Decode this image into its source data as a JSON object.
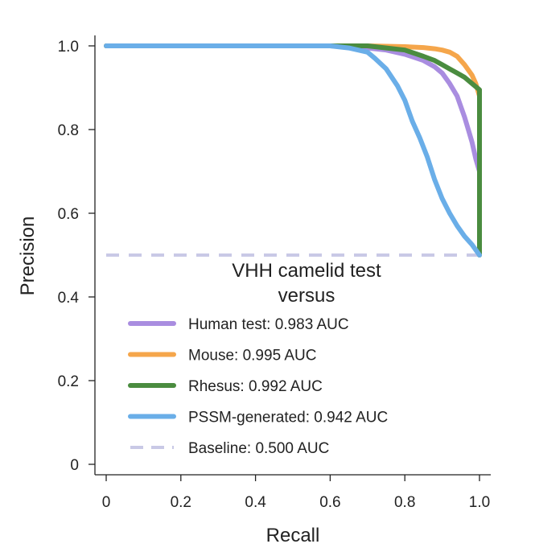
{
  "chart_data": {
    "type": "line",
    "title": "",
    "xlabel": "Recall",
    "ylabel": "Precision",
    "xlim": [
      0,
      1.0
    ],
    "ylim": [
      0,
      1.0
    ],
    "x_ticks": [
      "0",
      "0.2",
      "0.4",
      "0.6",
      "0.8",
      "1.0"
    ],
    "y_ticks": [
      "0",
      "0.2",
      "0.4",
      "0.6",
      "0.8",
      "1.0"
    ],
    "grid": false,
    "legend_title": "VHH camelid test versus",
    "legend_position": "center",
    "series": [
      {
        "name": "Human test: 0.983 AUC",
        "color": "#a98de0",
        "style": "solid",
        "points": [
          [
            0,
            1.0
          ],
          [
            0.6,
            1.0
          ],
          [
            0.7,
            0.995
          ],
          [
            0.75,
            0.99
          ],
          [
            0.8,
            0.98
          ],
          [
            0.85,
            0.965
          ],
          [
            0.88,
            0.95
          ],
          [
            0.9,
            0.935
          ],
          [
            0.92,
            0.91
          ],
          [
            0.94,
            0.88
          ],
          [
            0.96,
            0.83
          ],
          [
            0.97,
            0.8
          ],
          [
            0.98,
            0.77
          ],
          [
            0.99,
            0.73
          ],
          [
            1.0,
            0.7
          ],
          [
            1.0,
            0.5
          ]
        ]
      },
      {
        "name": "Mouse: 0.995 AUC",
        "color": "#f5a64b",
        "style": "solid",
        "points": [
          [
            0,
            1.0
          ],
          [
            0.7,
            1.0
          ],
          [
            0.8,
            0.998
          ],
          [
            0.85,
            0.996
          ],
          [
            0.88,
            0.993
          ],
          [
            0.9,
            0.99
          ],
          [
            0.92,
            0.985
          ],
          [
            0.94,
            0.975
          ],
          [
            0.96,
            0.955
          ],
          [
            0.98,
            0.93
          ],
          [
            0.99,
            0.91
          ],
          [
            1.0,
            0.88
          ],
          [
            1.0,
            0.5
          ]
        ]
      },
      {
        "name": "Rhesus: 0.992 AUC",
        "color": "#4a8c3f",
        "style": "solid",
        "points": [
          [
            0,
            1.0
          ],
          [
            0.7,
            1.0
          ],
          [
            0.75,
            0.995
          ],
          [
            0.8,
            0.99
          ],
          [
            0.85,
            0.975
          ],
          [
            0.88,
            0.965
          ],
          [
            0.9,
            0.955
          ],
          [
            0.92,
            0.945
          ],
          [
            0.94,
            0.935
          ],
          [
            0.96,
            0.925
          ],
          [
            0.98,
            0.91
          ],
          [
            1.0,
            0.895
          ],
          [
            1.0,
            0.5
          ]
        ]
      },
      {
        "name": "PSSM-generated: 0.942 AUC",
        "color": "#6aaee8",
        "style": "solid",
        "points": [
          [
            0,
            1.0
          ],
          [
            0.6,
            1.0
          ],
          [
            0.65,
            0.995
          ],
          [
            0.7,
            0.985
          ],
          [
            0.72,
            0.97
          ],
          [
            0.75,
            0.945
          ],
          [
            0.78,
            0.905
          ],
          [
            0.8,
            0.87
          ],
          [
            0.82,
            0.82
          ],
          [
            0.84,
            0.78
          ],
          [
            0.86,
            0.735
          ],
          [
            0.88,
            0.68
          ],
          [
            0.9,
            0.635
          ],
          [
            0.92,
            0.6
          ],
          [
            0.94,
            0.57
          ],
          [
            0.96,
            0.545
          ],
          [
            0.98,
            0.525
          ],
          [
            1.0,
            0.5
          ]
        ]
      },
      {
        "name": "Baseline: 0.500 AUC",
        "color": "#c9c9e6",
        "style": "dashed",
        "points": [
          [
            0,
            0.5
          ],
          [
            1.0,
            0.5
          ]
        ]
      }
    ]
  }
}
